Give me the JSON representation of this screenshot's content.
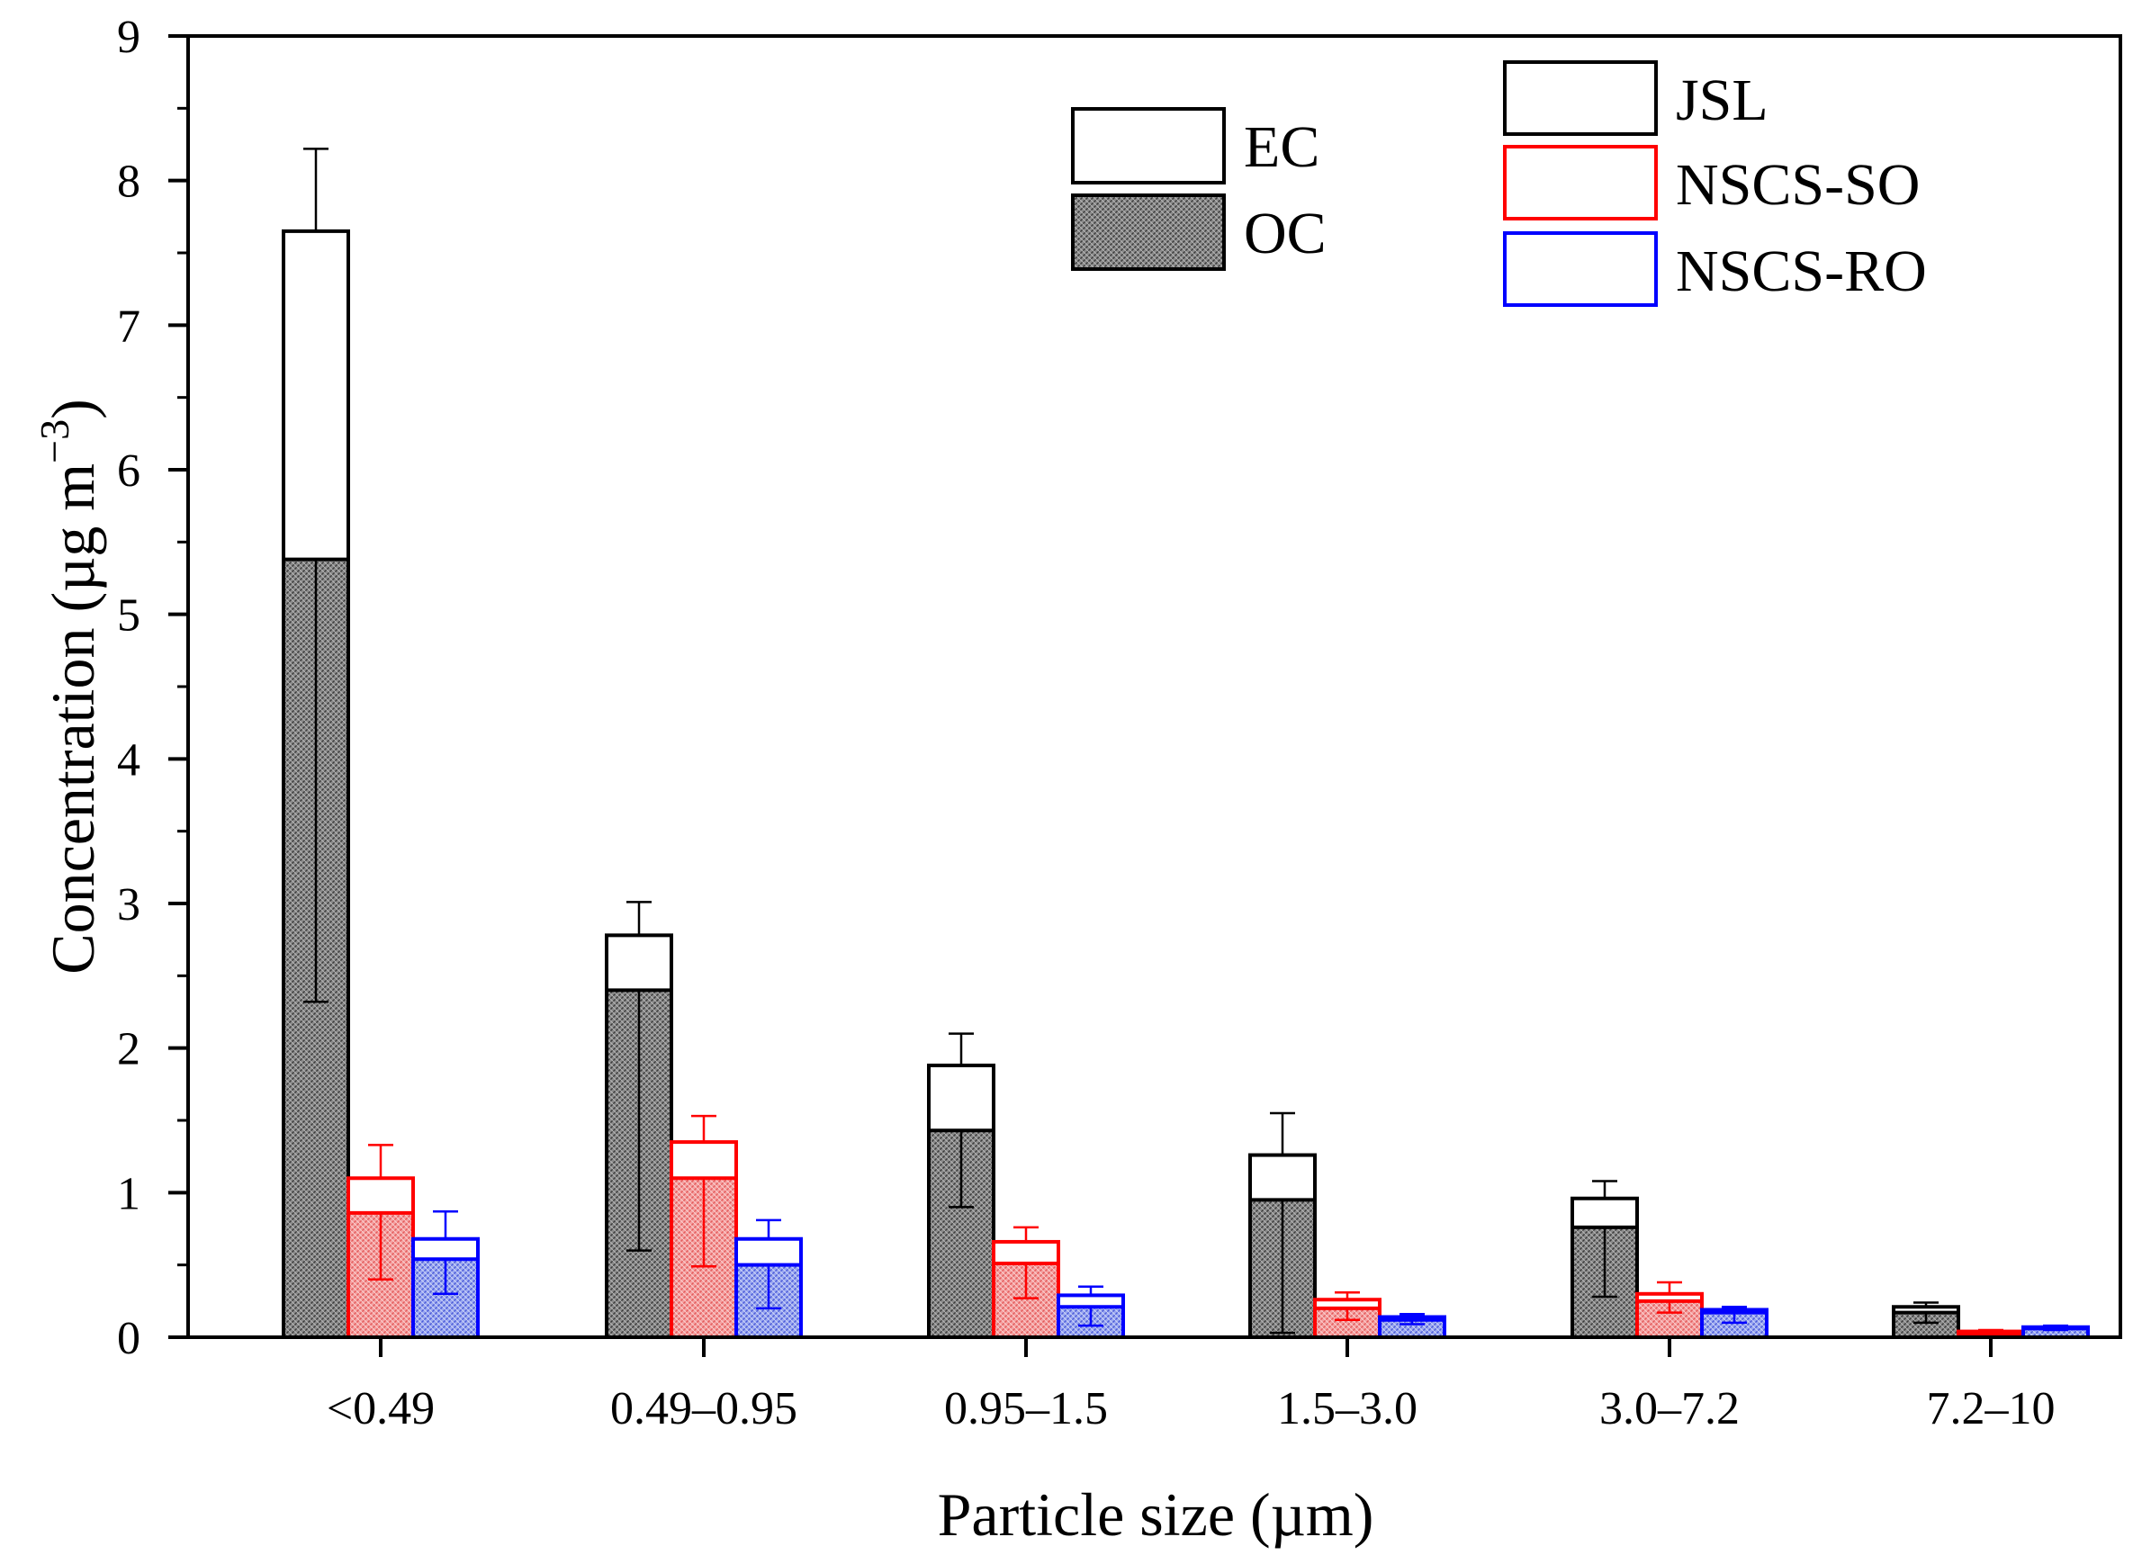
{
  "chart_data": {
    "type": "bar",
    "xlabel": "Particle size (µm)",
    "ylabel_main": "Concentration (µg m",
    "ylabel_sup": "−3",
    "ylabel_close": ")",
    "ylim": [
      0,
      9
    ],
    "yticks": [
      "0",
      "1",
      "2",
      "3",
      "4",
      "5",
      "6",
      "7",
      "8",
      "9"
    ],
    "categories": [
      "<0.49",
      "0.49–0.95",
      "0.95–1.5",
      "1.5–3.0",
      "3.0–7.2",
      "7.2–10"
    ],
    "components_legend": [
      {
        "name": "EC",
        "fill": "white"
      },
      {
        "name": "OC",
        "fill": "hatched"
      }
    ],
    "series": [
      {
        "name": "JSL",
        "color": "#000000",
        "oc": [
          5.38,
          2.4,
          1.43,
          0.95,
          0.76,
          0.17
        ],
        "total": [
          7.65,
          2.78,
          1.88,
          1.26,
          0.96,
          0.21
        ],
        "total_err_upper": [
          8.22,
          3.01,
          2.1,
          1.55,
          1.08,
          0.24
        ],
        "oc_err_lower": [
          2.32,
          0.6,
          0.9,
          0.03,
          0.28,
          0.1
        ]
      },
      {
        "name": "NSCS-SO",
        "color": "#ff0000",
        "oc": [
          0.86,
          1.1,
          0.51,
          0.2,
          0.25,
          0.02
        ],
        "total": [
          1.1,
          1.35,
          0.66,
          0.26,
          0.3,
          0.04
        ],
        "total_err_upper": [
          1.33,
          1.53,
          0.76,
          0.31,
          0.38,
          0.05
        ],
        "oc_err_lower": [
          0.4,
          0.49,
          0.27,
          0.12,
          0.17,
          0.01
        ]
      },
      {
        "name": "NSCS-RO",
        "color": "#0000ff",
        "oc": [
          0.54,
          0.5,
          0.21,
          0.12,
          0.17,
          0.06
        ],
        "total": [
          0.68,
          0.68,
          0.29,
          0.14,
          0.19,
          0.07
        ],
        "total_err_upper": [
          0.87,
          0.81,
          0.35,
          0.16,
          0.21,
          0.08
        ],
        "oc_err_lower": [
          0.3,
          0.2,
          0.08,
          0.09,
          0.1,
          0.05
        ]
      }
    ]
  }
}
